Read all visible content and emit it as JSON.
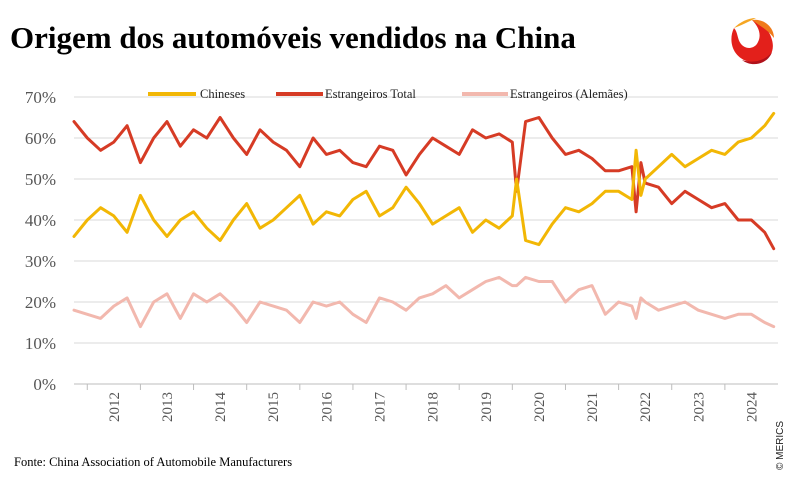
{
  "chart_data": {
    "type": "line",
    "title": "Origem dos automóveis vendidos na China",
    "source": "Fonte: China Association of Automobile Manufacturers",
    "copyright": "© MERICS",
    "xlabel": "",
    "ylabel": "",
    "ylim": [
      0,
      70
    ],
    "yticks": [
      "0%",
      "10%",
      "20%",
      "30%",
      "40%",
      "50%",
      "60%",
      "70%"
    ],
    "xlim": [
      2011.75,
      2025.0
    ],
    "year_labels": [
      "2012",
      "2013",
      "2014",
      "2015",
      "2016",
      "2017",
      "2018",
      "2019",
      "2020",
      "2021",
      "2022",
      "2023",
      "2024"
    ],
    "grid": "horizontal",
    "legend_position": "top",
    "series": [
      {
        "name": "Chineses",
        "color": "#f2b705",
        "x": [
          2011.75,
          2012.0,
          2012.25,
          2012.5,
          2012.75,
          2013.0,
          2013.25,
          2013.5,
          2013.75,
          2014.0,
          2014.25,
          2014.5,
          2014.75,
          2015.0,
          2015.25,
          2015.5,
          2015.75,
          2016.0,
          2016.25,
          2016.5,
          2016.75,
          2017.0,
          2017.25,
          2017.5,
          2017.75,
          2018.0,
          2018.25,
          2018.5,
          2018.75,
          2019.0,
          2019.25,
          2019.5,
          2019.75,
          2020.0,
          2020.08,
          2020.25,
          2020.5,
          2020.75,
          2021.0,
          2021.25,
          2021.5,
          2021.75,
          2022.0,
          2022.25,
          2022.33,
          2022.42,
          2022.5,
          2022.75,
          2023.0,
          2023.25,
          2023.5,
          2023.75,
          2024.0,
          2024.25,
          2024.5,
          2024.75,
          2024.92
        ],
        "values": [
          36,
          40,
          43,
          41,
          37,
          46,
          40,
          36,
          40,
          42,
          38,
          35,
          40,
          44,
          38,
          40,
          43,
          46,
          39,
          42,
          41,
          45,
          47,
          41,
          43,
          48,
          44,
          39,
          41,
          43,
          37,
          40,
          38,
          41,
          50,
          35,
          34,
          39,
          43,
          42,
          44,
          47,
          47,
          45,
          57,
          46,
          50,
          53,
          56,
          53,
          55,
          57,
          56,
          59,
          60,
          63,
          66
        ]
      },
      {
        "name": "Estrangeiros Total",
        "color": "#d63b25",
        "x": [
          2011.75,
          2012.0,
          2012.25,
          2012.5,
          2012.75,
          2013.0,
          2013.25,
          2013.5,
          2013.75,
          2014.0,
          2014.25,
          2014.5,
          2014.75,
          2015.0,
          2015.25,
          2015.5,
          2015.75,
          2016.0,
          2016.25,
          2016.5,
          2016.75,
          2017.0,
          2017.25,
          2017.5,
          2017.75,
          2018.0,
          2018.25,
          2018.5,
          2018.75,
          2019.0,
          2019.25,
          2019.5,
          2019.75,
          2020.0,
          2020.08,
          2020.25,
          2020.5,
          2020.75,
          2021.0,
          2021.25,
          2021.5,
          2021.75,
          2022.0,
          2022.25,
          2022.33,
          2022.42,
          2022.5,
          2022.75,
          2023.0,
          2023.25,
          2023.5,
          2023.75,
          2024.0,
          2024.25,
          2024.5,
          2024.75,
          2024.92
        ],
        "values": [
          64,
          60,
          57,
          59,
          63,
          54,
          60,
          64,
          58,
          62,
          60,
          65,
          60,
          56,
          62,
          59,
          57,
          53,
          60,
          56,
          57,
          54,
          53,
          58,
          57,
          51,
          56,
          60,
          58,
          56,
          62,
          60,
          61,
          59,
          47,
          64,
          65,
          60,
          56,
          57,
          55,
          52,
          52,
          53,
          42,
          54,
          49,
          48,
          44,
          47,
          45,
          43,
          44,
          40,
          40,
          37,
          33
        ]
      },
      {
        "name": "Estrangeiros (Alemães)",
        "color": "#f2b8ae",
        "x": [
          2011.75,
          2012.0,
          2012.25,
          2012.5,
          2012.75,
          2013.0,
          2013.25,
          2013.5,
          2013.75,
          2014.0,
          2014.25,
          2014.5,
          2014.75,
          2015.0,
          2015.25,
          2015.5,
          2015.75,
          2016.0,
          2016.25,
          2016.5,
          2016.75,
          2017.0,
          2017.25,
          2017.5,
          2017.75,
          2018.0,
          2018.25,
          2018.5,
          2018.75,
          2019.0,
          2019.25,
          2019.5,
          2019.75,
          2020.0,
          2020.08,
          2020.25,
          2020.5,
          2020.75,
          2021.0,
          2021.25,
          2021.5,
          2021.75,
          2022.0,
          2022.25,
          2022.33,
          2022.42,
          2022.5,
          2022.75,
          2023.0,
          2023.25,
          2023.5,
          2023.75,
          2024.0,
          2024.25,
          2024.5,
          2024.75,
          2024.92
        ],
        "values": [
          18,
          17,
          16,
          19,
          21,
          14,
          20,
          22,
          16,
          22,
          20,
          22,
          19,
          15,
          20,
          19,
          18,
          15,
          20,
          19,
          20,
          17,
          15,
          21,
          20,
          18,
          21,
          22,
          24,
          21,
          23,
          25,
          26,
          24,
          24,
          26,
          25,
          25,
          20,
          23,
          24,
          17,
          20,
          19,
          16,
          21,
          20,
          18,
          19,
          20,
          18,
          17,
          16,
          17,
          17,
          15,
          14
        ]
      }
    ]
  }
}
